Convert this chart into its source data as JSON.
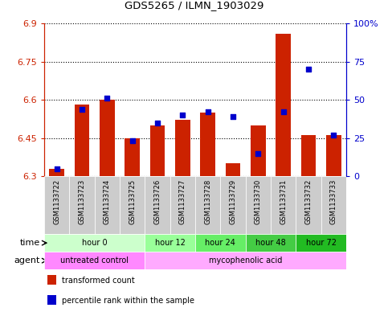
{
  "title": "GDS5265 / ILMN_1903029",
  "samples": [
    "GSM1133722",
    "GSM1133723",
    "GSM1133724",
    "GSM1133725",
    "GSM1133726",
    "GSM1133727",
    "GSM1133728",
    "GSM1133729",
    "GSM1133730",
    "GSM1133731",
    "GSM1133732",
    "GSM1133733"
  ],
  "red_vals": [
    6.33,
    6.58,
    6.6,
    6.45,
    6.5,
    6.52,
    6.55,
    6.35,
    6.5,
    6.86,
    6.46,
    6.46
  ],
  "blue_pct": [
    5,
    44,
    51,
    23,
    35,
    40,
    42,
    39,
    15,
    42,
    70,
    27
  ],
  "ylim_left": [
    6.3,
    6.9
  ],
  "ylim_right": [
    0,
    100
  ],
  "yticks_left": [
    6.3,
    6.45,
    6.6,
    6.75,
    6.9
  ],
  "yticks_right": [
    0,
    25,
    50,
    75,
    100
  ],
  "ytick_labels_left": [
    "6.3",
    "6.45",
    "6.6",
    "6.75",
    "6.9"
  ],
  "ytick_labels_right": [
    "0",
    "25",
    "50",
    "75",
    "100%"
  ],
  "bar_color": "#cc2200",
  "dot_color": "#0000cc",
  "bg_color": "#ffffff",
  "time_groups": [
    {
      "label": "hour 0",
      "start": 0,
      "end": 4,
      "color": "#ccffcc"
    },
    {
      "label": "hour 12",
      "start": 4,
      "end": 6,
      "color": "#99ff99"
    },
    {
      "label": "hour 24",
      "start": 6,
      "end": 8,
      "color": "#66ee66"
    },
    {
      "label": "hour 48",
      "start": 8,
      "end": 10,
      "color": "#44cc44"
    },
    {
      "label": "hour 72",
      "start": 10,
      "end": 12,
      "color": "#22bb22"
    }
  ],
  "agent_groups": [
    {
      "label": "untreated control",
      "start": 0,
      "end": 4,
      "color": "#ff88ff"
    },
    {
      "label": "mycophenolic acid",
      "start": 4,
      "end": 12,
      "color": "#ffaaff"
    }
  ],
  "legend_red": "transformed count",
  "legend_blue": "percentile rank within the sample",
  "time_label": "time",
  "agent_label": "agent"
}
